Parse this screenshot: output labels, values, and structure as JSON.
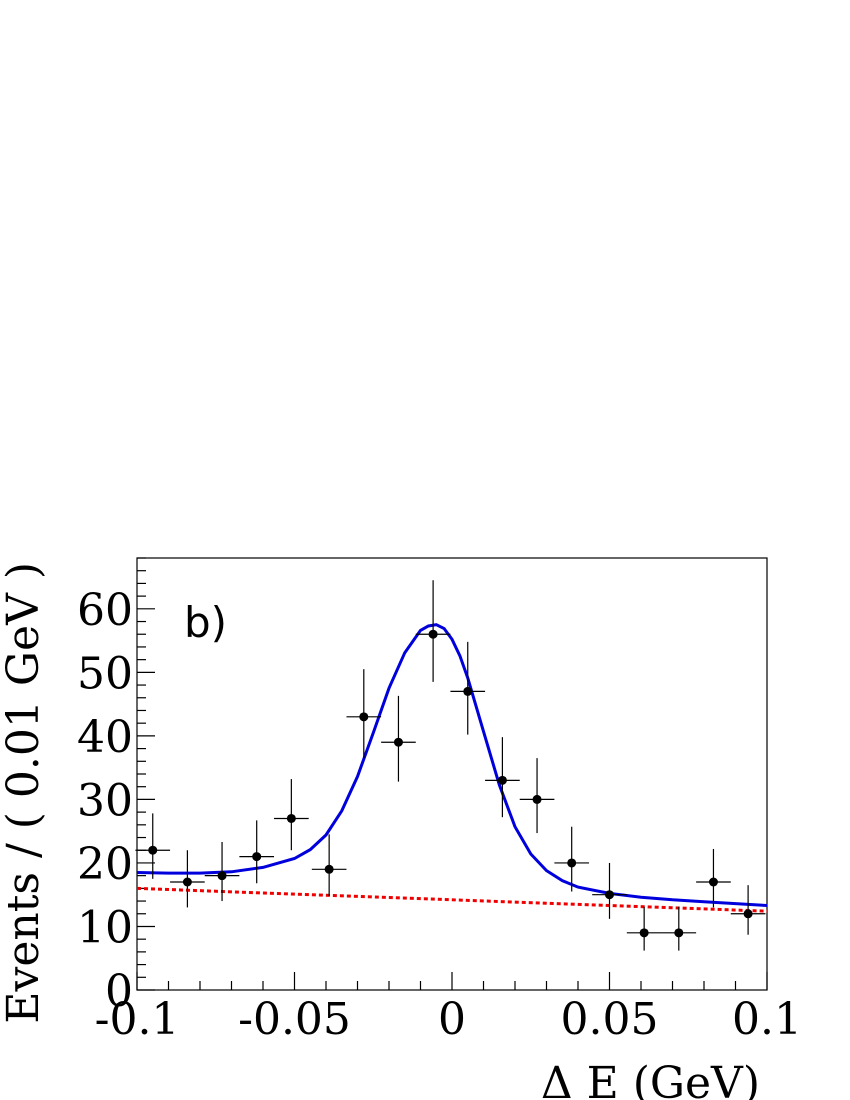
{
  "chart_data": {
    "type": "scatter",
    "panel_label": "b)",
    "xlabel": "Δ E (GeV)",
    "ylabel": "Events / ( 0.01 GeV )",
    "xlim": [
      -0.1,
      0.1
    ],
    "ylim": [
      0,
      68
    ],
    "x_ticks": [
      -0.1,
      -0.05,
      0,
      0.05,
      0.1
    ],
    "x_tick_labels": [
      "-0.1",
      "-0.05",
      "0",
      "0.05",
      "0.1"
    ],
    "y_ticks": [
      0,
      10,
      20,
      30,
      40,
      50,
      60
    ],
    "y_tick_labels": [
      "0",
      "10",
      "20",
      "30",
      "40",
      "50",
      "60"
    ],
    "grid": false,
    "data_points": {
      "x": [
        -0.095,
        -0.084,
        -0.073,
        -0.062,
        -0.051,
        -0.039,
        -0.028,
        -0.017,
        -0.006,
        0.005,
        0.016,
        0.027,
        0.038,
        0.05,
        0.061,
        0.072,
        0.083,
        0.094
      ],
      "y": [
        22,
        17,
        18,
        21,
        27,
        19,
        43,
        39,
        56,
        47,
        33,
        30,
        20,
        15,
        9,
        9,
        17,
        12
      ],
      "y_err_low": [
        4.5,
        4,
        4,
        4.2,
        5,
        4.2,
        6.5,
        6.2,
        7.5,
        6.8,
        5.8,
        5.3,
        4.5,
        3.8,
        2.8,
        2.8,
        4,
        3.3
      ],
      "y_err_high": [
        5.8,
        5,
        5.3,
        5.7,
        6.2,
        5.5,
        7.5,
        7.3,
        8.5,
        7.8,
        6.8,
        6.5,
        5.7,
        5,
        4.1,
        4.1,
        5.2,
        4.5
      ],
      "x_err": 0.0055,
      "color": "#000000"
    },
    "series": [
      {
        "style": "solid",
        "color": "#0000dd",
        "x": [
          -0.1,
          -0.09,
          -0.08,
          -0.07,
          -0.06,
          -0.05,
          -0.045,
          -0.04,
          -0.035,
          -0.03,
          -0.025,
          -0.02,
          -0.015,
          -0.01,
          -0.0075,
          -0.005,
          -0.0025,
          0,
          0.0025,
          0.005,
          0.01,
          0.015,
          0.02,
          0.025,
          0.03,
          0.035,
          0.04,
          0.05,
          0.06,
          0.07,
          0.08,
          0.09,
          0.1
        ],
        "y": [
          18.5,
          18.4,
          18.4,
          18.6,
          19.3,
          20.7,
          22.1,
          24.4,
          28.2,
          33.6,
          40.5,
          47.5,
          53.1,
          56.6,
          57.3,
          57.5,
          56.9,
          55.2,
          52.6,
          49.1,
          40.7,
          32.3,
          25.7,
          21.4,
          18.8,
          17.2,
          16.2,
          15.2,
          14.6,
          14.2,
          13.9,
          13.6,
          13.3
        ]
      },
      {
        "style": "dashed",
        "color": "#ee0000",
        "x": [
          -0.1,
          0.1
        ],
        "y": [
          16.0,
          12.4
        ]
      }
    ]
  }
}
